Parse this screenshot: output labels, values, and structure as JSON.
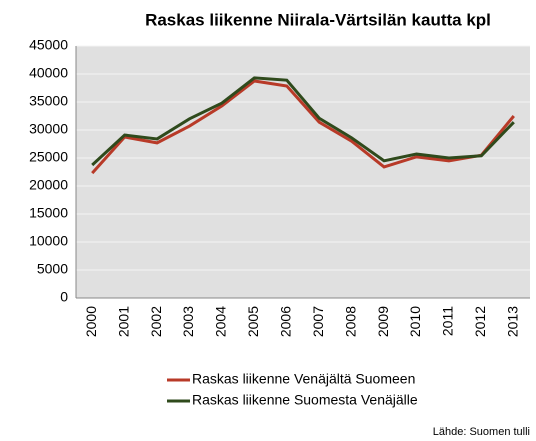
{
  "chart_data": {
    "type": "line",
    "title": "Raskas liikenne Niirala-Värtsilän kautta kpl",
    "source": "Lähde: Suomen tulli",
    "categories": [
      "2000",
      "2001",
      "2002",
      "2003",
      "2004",
      "2005",
      "2006",
      "2007",
      "2008",
      "2009",
      "2010",
      "2011",
      "2012",
      "2013"
    ],
    "series": [
      {
        "name": "Raskas liikenne Venäjältä Suomeen",
        "color": "#b83a28",
        "values": [
          22300,
          28750,
          27700,
          30700,
          34300,
          38750,
          37850,
          31400,
          28000,
          23400,
          25200,
          24500,
          25500,
          32500
        ]
      },
      {
        "name": "Raskas liikenne Suomesta Venäjälle",
        "color": "#2f4a1c",
        "values": [
          23750,
          29100,
          28400,
          32000,
          34800,
          39300,
          38900,
          32100,
          28600,
          24500,
          25700,
          25000,
          25400,
          31400
        ]
      }
    ],
    "ylim": [
      0,
      45000
    ],
    "yticks": [
      0,
      5000,
      10000,
      15000,
      20000,
      25000,
      30000,
      35000,
      40000,
      45000
    ],
    "grid": true
  }
}
